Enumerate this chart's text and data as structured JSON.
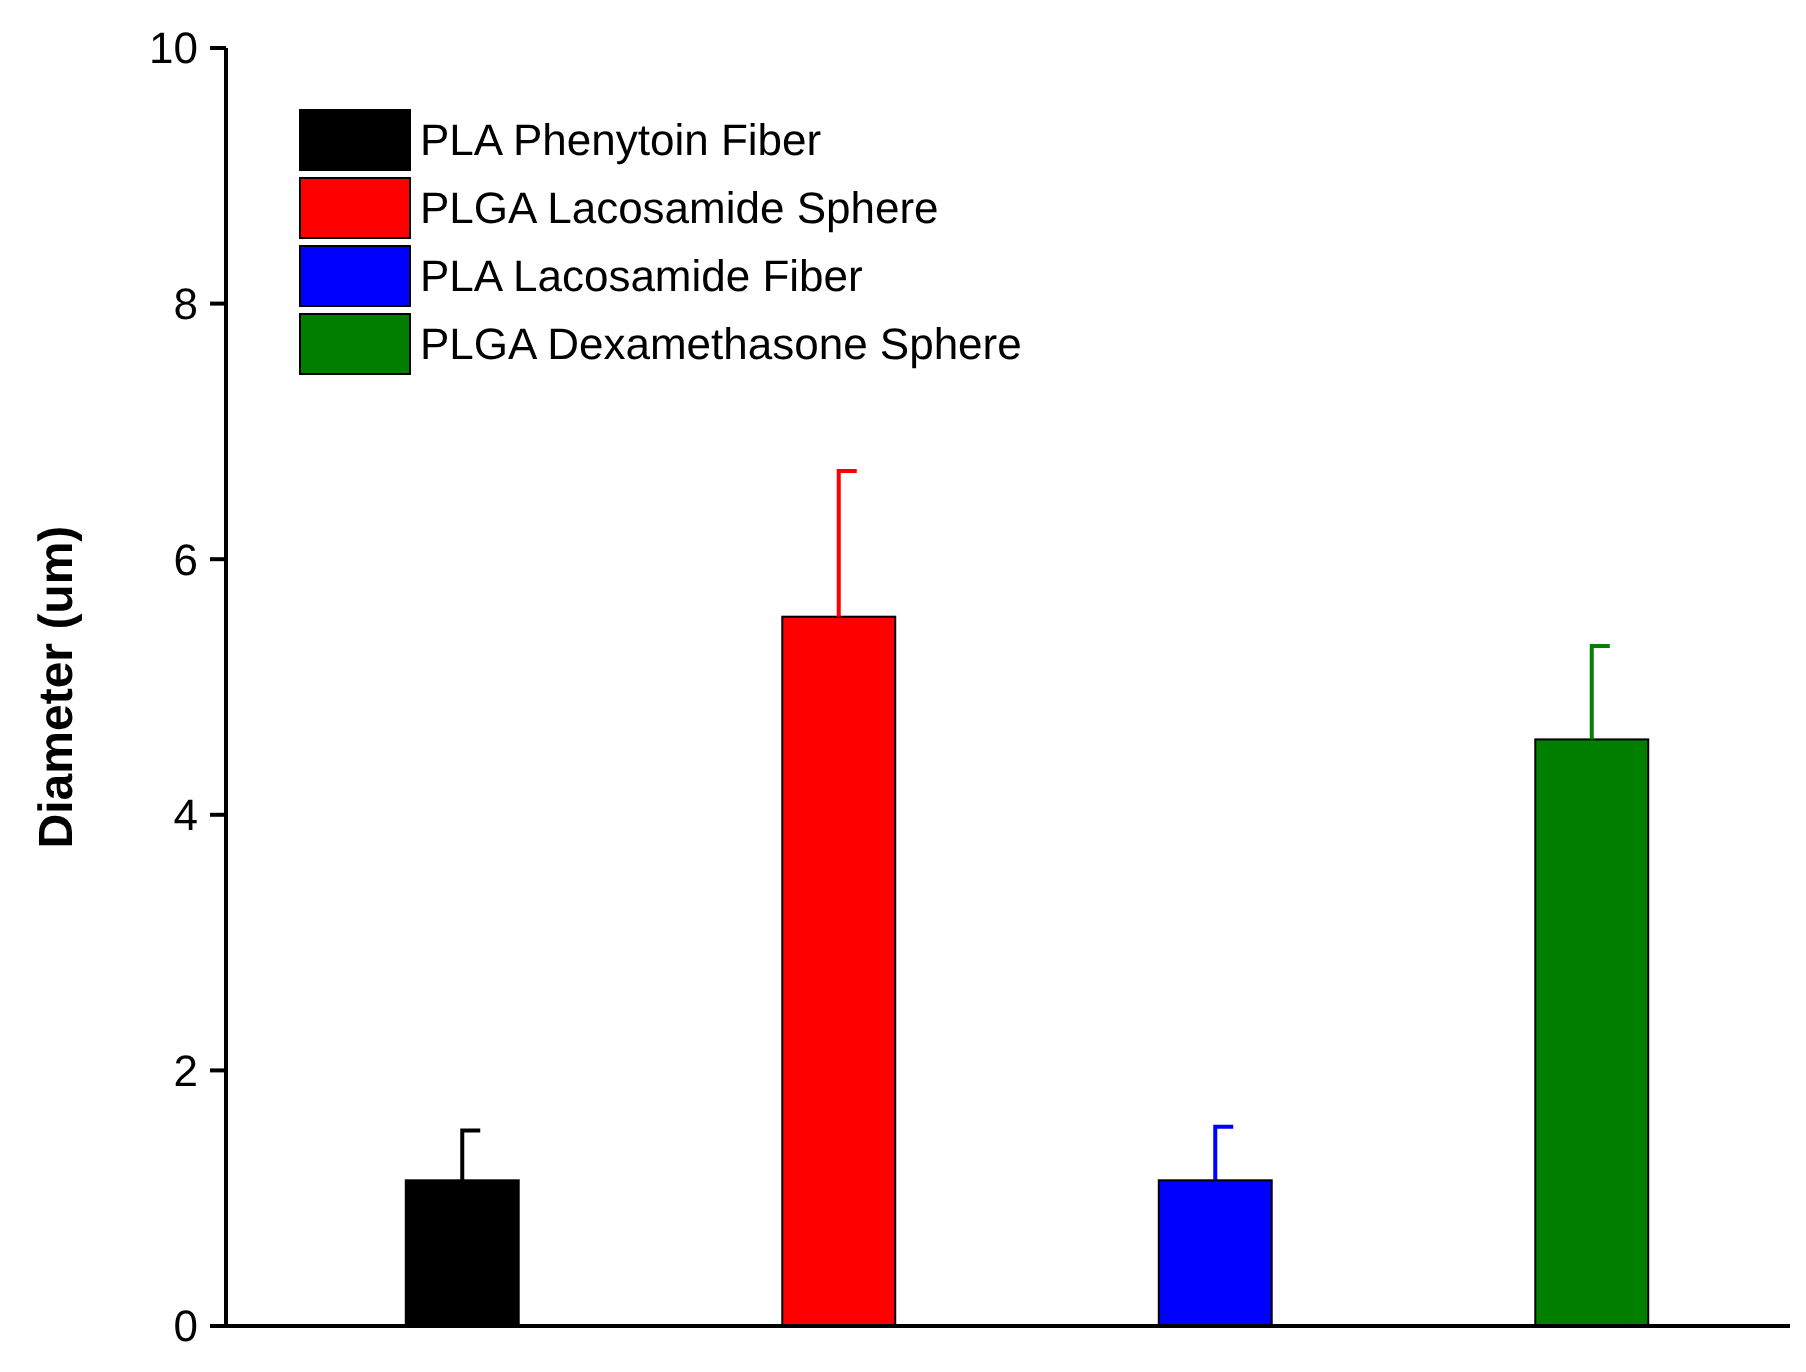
{
  "chart_data": {
    "type": "bar",
    "ylabel": "Diameter (um)",
    "categories": [
      null,
      null,
      null,
      null
    ],
    "ylim": [
      0,
      10
    ],
    "yticks": [
      0,
      2,
      4,
      6,
      8,
      10
    ],
    "legend": "top left",
    "series": [
      {
        "name": "PLA Phenytoin Fiber",
        "color": "#000000",
        "values": [
          1.14,
          null,
          null,
          null
        ],
        "errors": [
          [
            1.14,
            1.53
          ],
          null,
          null,
          null
        ]
      },
      {
        "name": "PLGA Lacosamide Sphere",
        "color": "#ff0000",
        "values": [
          null,
          5.55,
          null,
          null
        ],
        "errors": [
          null,
          [
            5.55,
            6.69
          ],
          null,
          null
        ]
      },
      {
        "name": "PLA Lacosamide Fiber",
        "color": "#0000ff",
        "values": [
          null,
          null,
          1.14,
          null
        ],
        "errors": [
          null,
          null,
          [
            1.14,
            1.56
          ],
          null
        ]
      },
      {
        "name": "PLGA Dexamethasone Sphere",
        "color": "#007f00",
        "values": [
          null,
          null,
          null,
          4.59
        ],
        "errors": [
          null,
          null,
          null,
          [
            4.59,
            5.32
          ]
        ]
      }
    ]
  }
}
